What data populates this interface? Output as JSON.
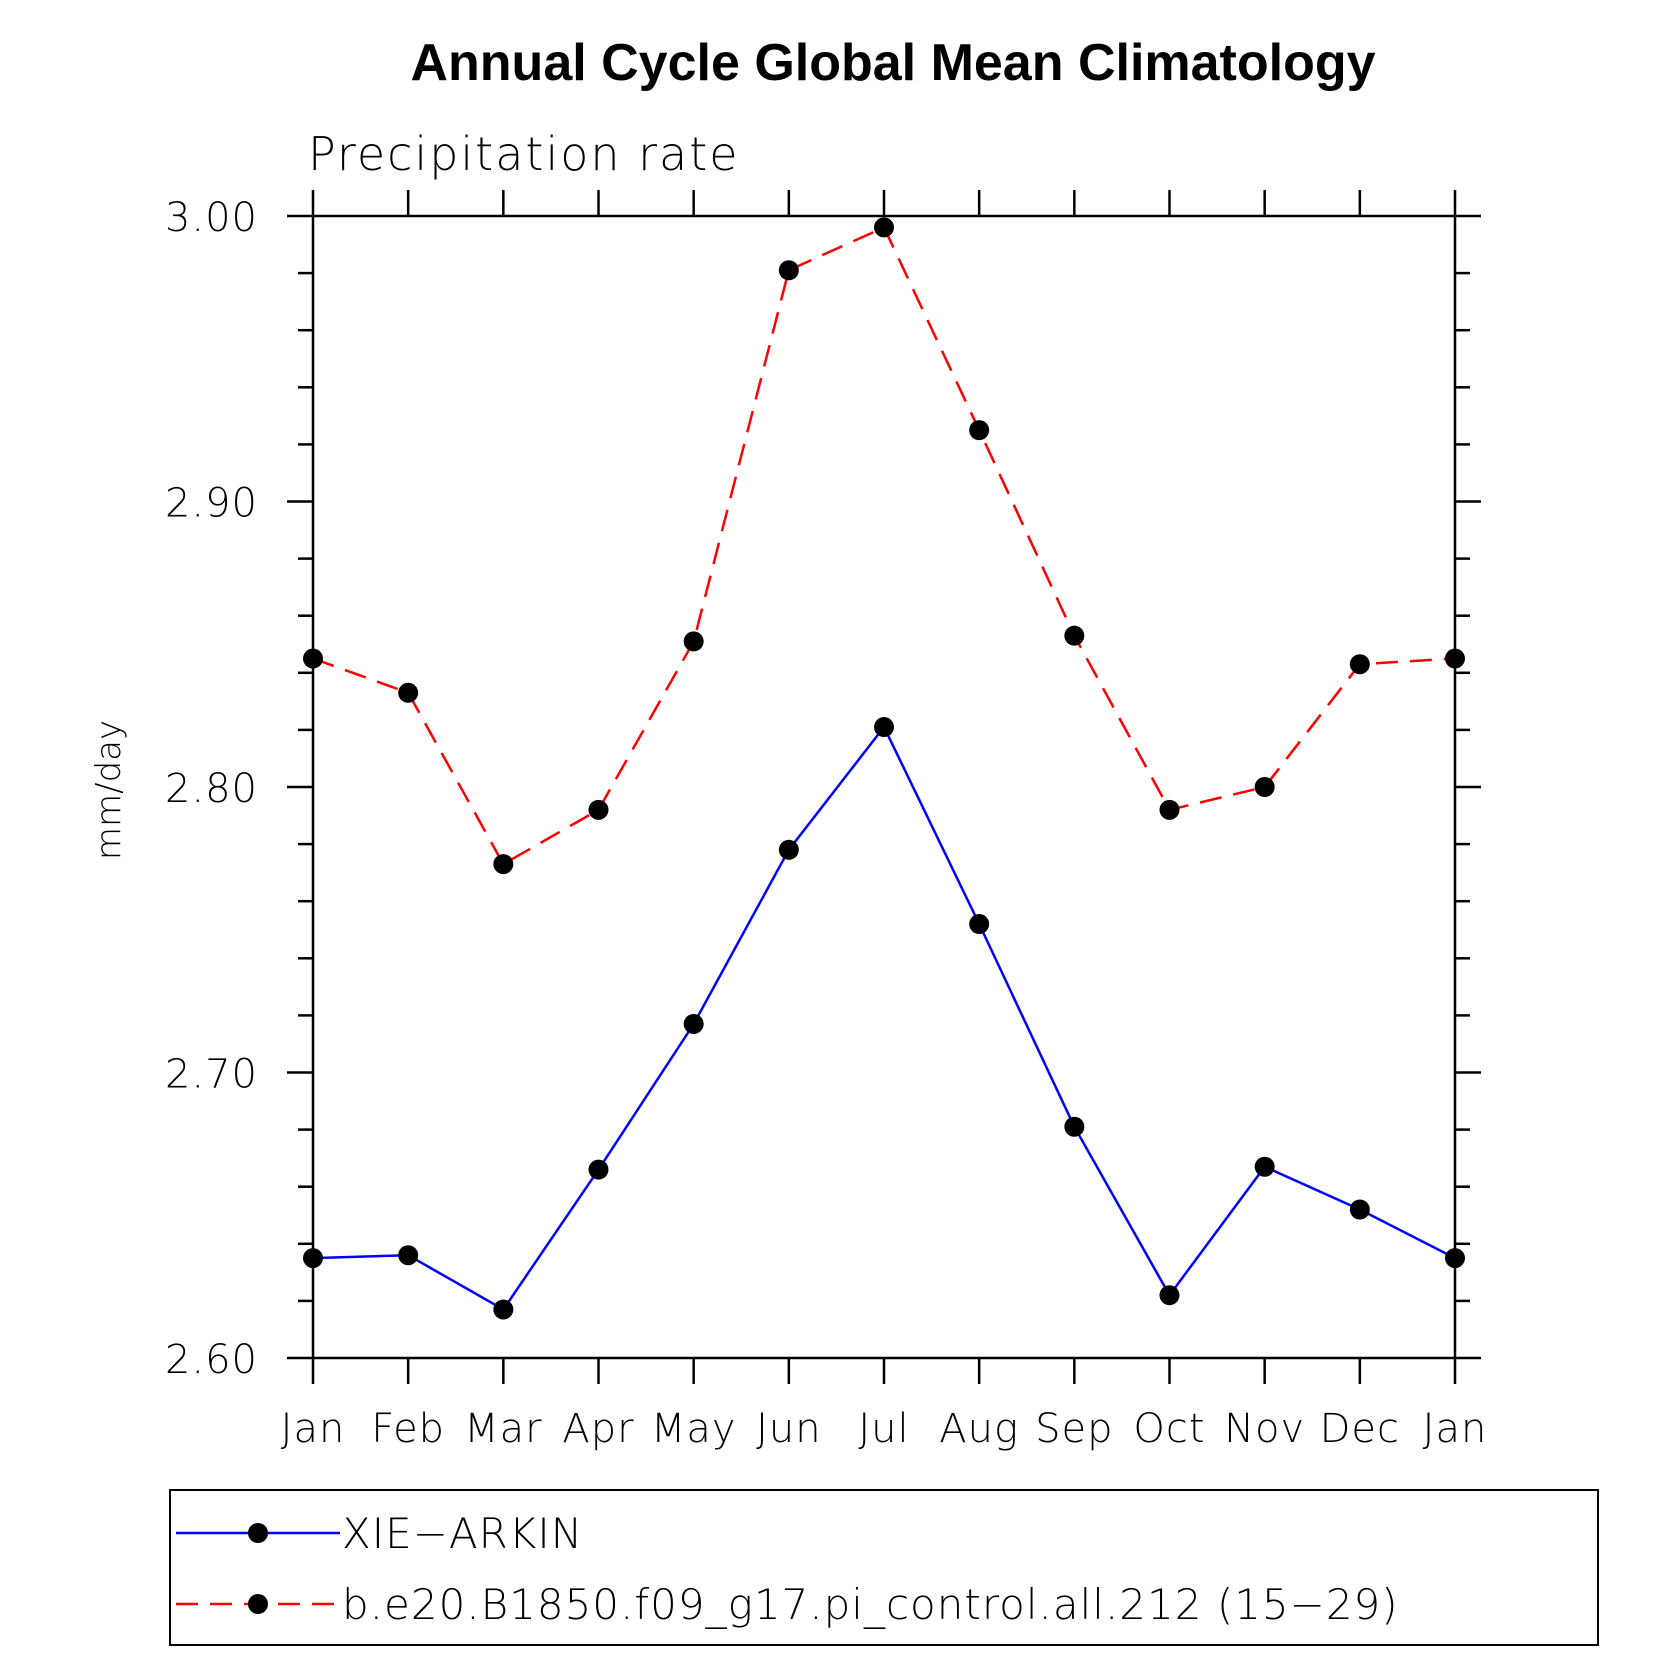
{
  "chart_data": {
    "type": "line",
    "title": "Annual Cycle Global Mean Climatology",
    "subtitle": "Precipitation rate",
    "xlabel": "",
    "ylabel": "mm/day",
    "categories": [
      "Jan",
      "Feb",
      "Mar",
      "Apr",
      "May",
      "Jun",
      "Jul",
      "Aug",
      "Sep",
      "Oct",
      "Nov",
      "Dec",
      "Jan"
    ],
    "ylim": [
      2.6,
      3.0
    ],
    "yticks": [
      "2.60",
      "2.70",
      "2.80",
      "2.90",
      "3.00"
    ],
    "grid": false,
    "legend_position": "bottom",
    "series": [
      {
        "name": "XIE−ARKIN",
        "color": "#0000ff",
        "line_style": "solid",
        "marker": "filled-circle",
        "values": [
          2.635,
          2.636,
          2.617,
          2.666,
          2.717,
          2.778,
          2.821,
          2.752,
          2.681,
          2.622,
          2.667,
          2.652,
          2.635
        ]
      },
      {
        "name": "b.e20.B1850.f09_g17.pi_control.all.212 (15−29)",
        "color": "#ff0000",
        "line_style": "dashed",
        "marker": "filled-circle",
        "values": [
          2.845,
          2.833,
          2.773,
          2.792,
          2.851,
          2.981,
          2.996,
          2.925,
          2.853,
          2.792,
          2.8,
          2.843,
          2.845
        ]
      }
    ]
  }
}
